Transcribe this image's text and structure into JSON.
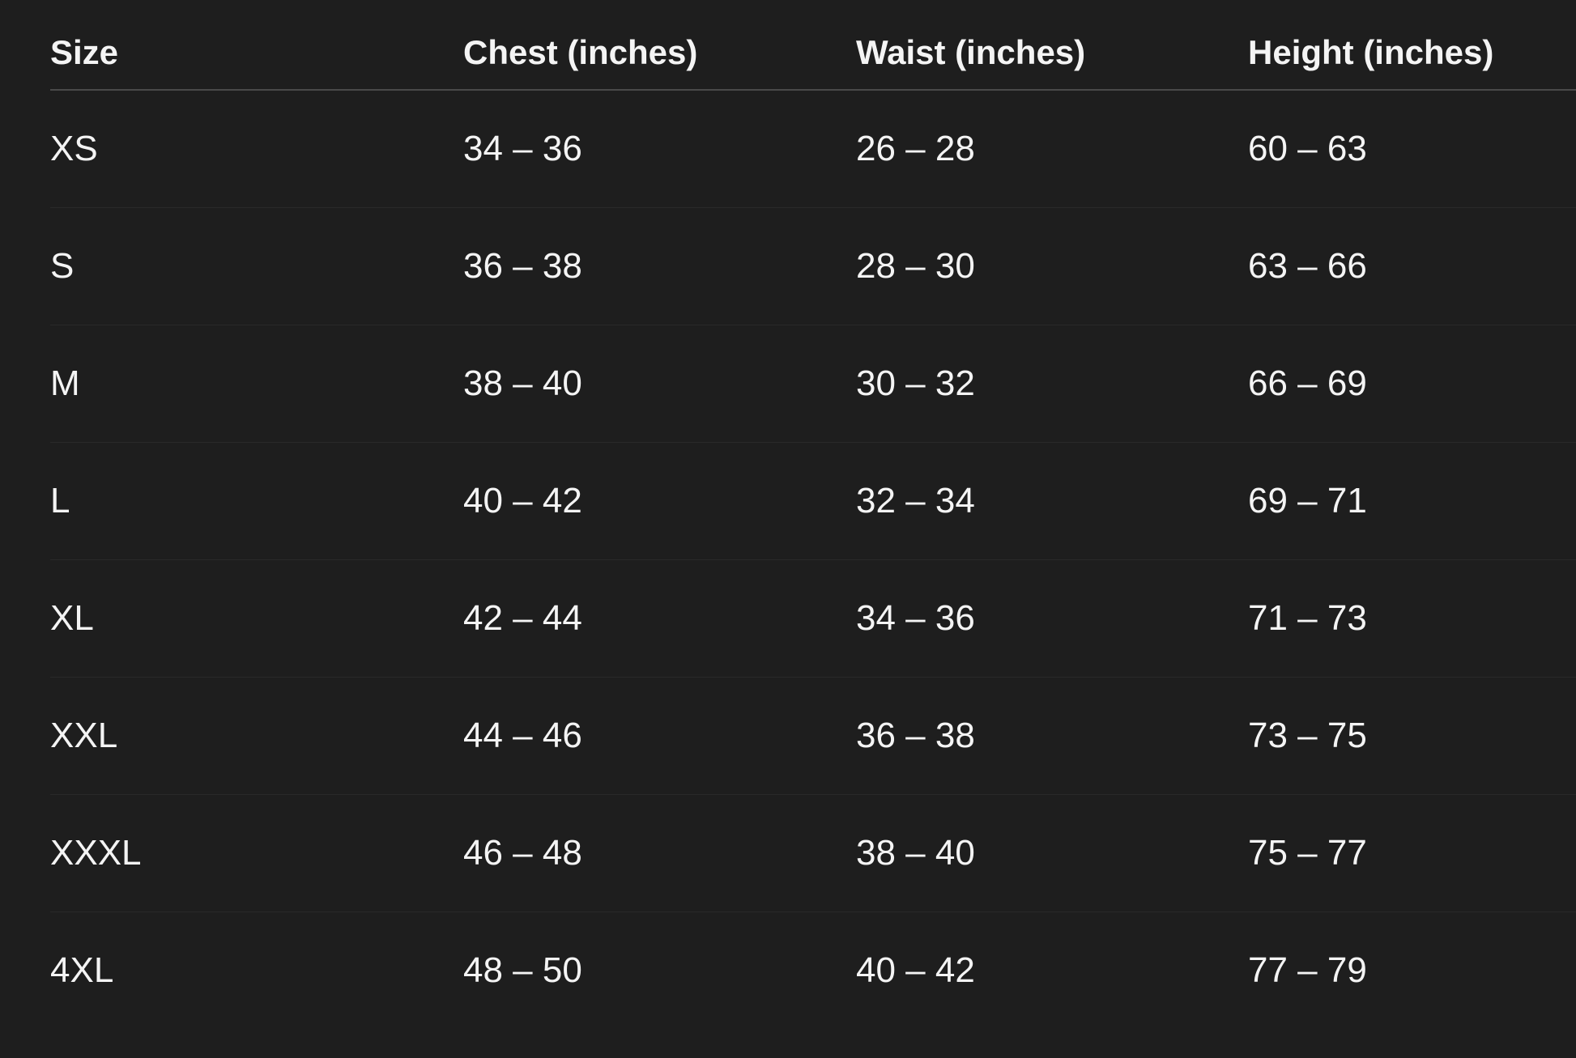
{
  "table": {
    "headers": [
      "Size",
      "Chest (inches)",
      "Waist (inches)",
      "Height (inches)"
    ],
    "rows": [
      [
        "XS",
        "34 – 36",
        "26 – 28",
        "60 – 63"
      ],
      [
        "S",
        "36 – 38",
        "28 – 30",
        "63 – 66"
      ],
      [
        "M",
        "38 – 40",
        "30 – 32",
        "66 – 69"
      ],
      [
        "L",
        "40 – 42",
        "32 – 34",
        "69 – 71"
      ],
      [
        "XL",
        "42 – 44",
        "34 – 36",
        "71 – 73"
      ],
      [
        "XXL",
        "44 – 46",
        "36 – 38",
        "73 – 75"
      ],
      [
        "XXXL",
        "46 – 48",
        "38 – 40",
        "75 – 77"
      ],
      [
        "4XL",
        "48 – 50",
        "40 – 42",
        "77 – 79"
      ]
    ]
  }
}
